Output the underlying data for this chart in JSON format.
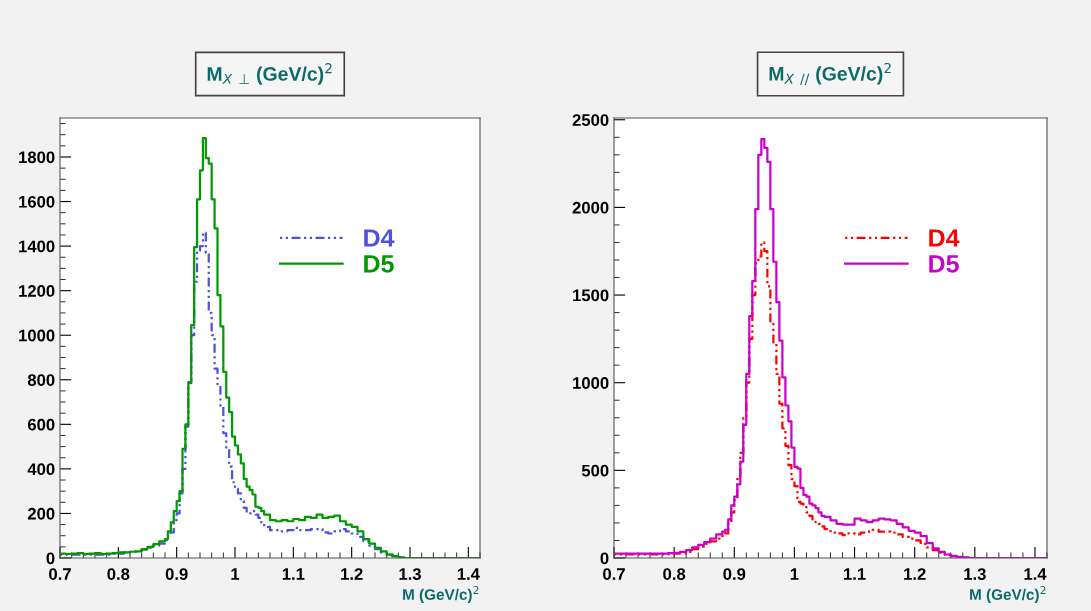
{
  "chart_data": [
    {
      "type": "histogram",
      "title": "M$_{X}$ $_{⊥}$ (GeV/c)$^{2}$",
      "xlabel": "M (GeV/c)$^{2}$",
      "bins": [
        0.7,
        0.71,
        0.72,
        0.73,
        0.74,
        0.75,
        0.76,
        0.77,
        0.78,
        0.79,
        0.8,
        0.81,
        0.82,
        0.83,
        0.84,
        0.85,
        0.86,
        0.87,
        0.88,
        0.885,
        0.89,
        0.895,
        0.9,
        0.905,
        0.91,
        0.915,
        0.92,
        0.925,
        0.93,
        0.935,
        0.94,
        0.945,
        0.95,
        0.955,
        0.96,
        0.965,
        0.97,
        0.975,
        0.98,
        0.985,
        0.99,
        0.995,
        1.0,
        1.005,
        1.01,
        1.015,
        1.02,
        1.025,
        1.03,
        1.035,
        1.04,
        1.045,
        1.05,
        1.06,
        1.07,
        1.08,
        1.09,
        1.1,
        1.11,
        1.12,
        1.13,
        1.14,
        1.15,
        1.16,
        1.17,
        1.18,
        1.19,
        1.2,
        1.21,
        1.22,
        1.23,
        1.24,
        1.25,
        1.26,
        1.27,
        1.28,
        1.29,
        1.3,
        1.31,
        1.32,
        1.33,
        1.34,
        1.35,
        1.36,
        1.37,
        1.38,
        1.39,
        1.4,
        1.41,
        1.42
      ],
      "series": [
        {
          "name": "D4",
          "color": "#4f4fe0",
          "line_style": "dotted",
          "values": [
            15,
            15,
            15,
            15,
            15,
            15,
            15,
            15,
            15,
            18,
            20,
            25,
            28,
            32,
            38,
            45,
            55,
            65,
            80,
            105,
            115,
            170,
            200,
            290,
            400,
            590,
            790,
            1000,
            1240,
            1380,
            1400,
            1460,
            1370,
            1100,
            1000,
            850,
            780,
            680,
            560,
            490,
            410,
            340,
            310,
            290,
            255,
            225,
            200,
            200,
            210,
            195,
            180,
            160,
            140,
            125,
            125,
            120,
            125,
            135,
            125,
            125,
            130,
            130,
            115,
            110,
            120,
            130,
            120,
            110,
            95,
            75,
            55,
            40,
            25,
            15,
            8,
            3,
            0,
            0,
            0,
            0,
            0,
            0,
            0,
            0,
            0,
            0,
            0,
            0,
            0
          ]
        },
        {
          "name": "D5",
          "color": "#009900",
          "line_style": "solid",
          "values": [
            20,
            18,
            20,
            22,
            18,
            20,
            22,
            18,
            20,
            22,
            25,
            25,
            28,
            30,
            40,
            50,
            62,
            75,
            85,
            120,
            160,
            210,
            255,
            300,
            490,
            600,
            785,
            1045,
            1395,
            1610,
            1740,
            1885,
            1795,
            1770,
            1610,
            1480,
            1180,
            1040,
            835,
            720,
            655,
            545,
            505,
            465,
            425,
            355,
            320,
            305,
            285,
            230,
            225,
            210,
            195,
            170,
            165,
            170,
            165,
            175,
            170,
            185,
            180,
            195,
            180,
            185,
            190,
            165,
            150,
            140,
            120,
            85,
            65,
            45,
            30,
            15,
            8,
            3,
            0,
            0,
            0,
            0,
            0,
            0,
            0,
            0,
            0,
            0,
            0,
            0,
            0
          ]
        }
      ],
      "xlim": [
        0.7,
        1.42
      ],
      "xticks": [
        0.7,
        0.8,
        0.9,
        1,
        1.1,
        1.2,
        1.3,
        1.4
      ],
      "ylim": [
        0,
        1975
      ],
      "yticks": [
        0,
        200,
        400,
        600,
        800,
        1000,
        1200,
        1400,
        1600,
        1800
      ],
      "grid": false,
      "legend": "top right"
    },
    {
      "type": "histogram",
      "title": "M$_{X}$ $_{//}$ (GeV/c)$^{2}$",
      "xlabel": "M (GeV/c)$^{2}$",
      "bins": [
        0.7,
        0.71,
        0.72,
        0.73,
        0.74,
        0.75,
        0.76,
        0.77,
        0.78,
        0.79,
        0.8,
        0.81,
        0.82,
        0.83,
        0.84,
        0.85,
        0.86,
        0.87,
        0.88,
        0.885,
        0.89,
        0.895,
        0.9,
        0.905,
        0.91,
        0.915,
        0.92,
        0.925,
        0.93,
        0.935,
        0.94,
        0.945,
        0.95,
        0.955,
        0.96,
        0.965,
        0.97,
        0.975,
        0.98,
        0.985,
        0.99,
        0.995,
        1.0,
        1.005,
        1.01,
        1.015,
        1.02,
        1.025,
        1.03,
        1.035,
        1.04,
        1.045,
        1.05,
        1.06,
        1.07,
        1.08,
        1.09,
        1.1,
        1.11,
        1.12,
        1.13,
        1.14,
        1.15,
        1.16,
        1.17,
        1.18,
        1.19,
        1.2,
        1.21,
        1.22,
        1.23,
        1.24,
        1.25,
        1.26,
        1.27,
        1.28,
        1.29,
        1.3,
        1.31,
        1.32,
        1.33,
        1.34,
        1.35,
        1.36,
        1.37,
        1.38,
        1.39,
        1.4,
        1.41,
        1.42
      ],
      "series": [
        {
          "name": "D4",
          "color": "#ff0000",
          "line_style": "dotted",
          "values": [
            20,
            20,
            20,
            20,
            20,
            20,
            20,
            20,
            20,
            22,
            25,
            28,
            35,
            50,
            65,
            80,
            95,
            110,
            125,
            140,
            200,
            260,
            330,
            450,
            600,
            800,
            1000,
            1250,
            1500,
            1680,
            1720,
            1800,
            1750,
            1550,
            1350,
            1230,
            1050,
            880,
            740,
            640,
            530,
            450,
            410,
            320,
            310,
            290,
            260,
            240,
            220,
            205,
            195,
            180,
            165,
            145,
            140,
            130,
            140,
            135,
            145,
            150,
            160,
            150,
            150,
            145,
            135,
            120,
            110,
            100,
            80,
            60,
            45,
            30,
            18,
            10,
            5,
            2,
            0,
            0,
            0,
            0,
            0,
            0,
            0,
            0,
            0,
            0,
            0,
            0,
            0
          ]
        },
        {
          "name": "D5",
          "color": "#cc00cc",
          "line_style": "solid",
          "values": [
            25,
            25,
            25,
            25,
            25,
            25,
            25,
            25,
            25,
            28,
            30,
            35,
            45,
            60,
            75,
            90,
            110,
            135,
            150,
            160,
            220,
            300,
            350,
            420,
            550,
            760,
            1050,
            1380,
            1580,
            1990,
            2300,
            2390,
            2340,
            2260,
            1990,
            1690,
            1460,
            1240,
            1030,
            870,
            780,
            630,
            520,
            510,
            400,
            360,
            350,
            310,
            300,
            285,
            260,
            240,
            235,
            215,
            195,
            190,
            190,
            225,
            215,
            205,
            215,
            225,
            220,
            215,
            195,
            175,
            155,
            145,
            125,
            85,
            55,
            35,
            20,
            12,
            6,
            3,
            0,
            0,
            0,
            0,
            0,
            0,
            0,
            0,
            0,
            0,
            0,
            0,
            0
          ]
        }
      ],
      "xlim": [
        0.7,
        1.42
      ],
      "xticks": [
        0.7,
        0.8,
        0.9,
        1,
        1.1,
        1.2,
        1.3,
        1.4
      ],
      "ylim": [
        0,
        2510
      ],
      "yticks": [
        0,
        500,
        1000,
        1500,
        2000,
        2500
      ],
      "grid": false,
      "legend": "top right"
    }
  ]
}
